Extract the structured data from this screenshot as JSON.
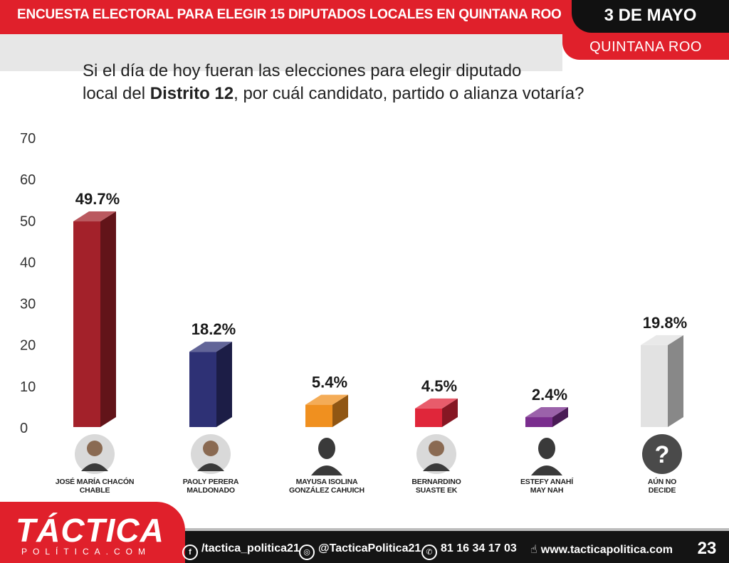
{
  "header": {
    "title": "ENCUESTA ELECTORAL PARA ELEGIR 15 DIPUTADOS LOCALES EN QUINTANA ROO",
    "date": "3 DE MAYO",
    "state": "QUINTANA ROO"
  },
  "question": {
    "line1": "Si el día de hoy fueran las elecciones para elegir diputado",
    "line2_pre": "local del ",
    "line2_bold": "Distrito 12",
    "line2_post": ", por cuál candidato, partido o alianza votaría?"
  },
  "chart_data": {
    "type": "bar",
    "title": "",
    "ylim": [
      0,
      70
    ],
    "yticks": [
      "70",
      "60",
      "50",
      "40",
      "30",
      "20",
      "10",
      "0"
    ],
    "categories": [
      "JOSÉ MARÍA CHACÓN CHABLE",
      "PAOLY PERERA MALDONADO",
      "MAYUSA ISOLINA GONZÁLEZ CAHUICH",
      "BERNARDINO SUASTE EK",
      "ESTEFY ANAHÍ MAY NAH",
      "AÚN NO DECIDE"
    ],
    "values": [
      49.7,
      18.2,
      5.4,
      4.5,
      2.4,
      19.8
    ],
    "labels": [
      "49.7%",
      "18.2%",
      "5.4%",
      "4.5%",
      "2.4%",
      "19.8%"
    ],
    "colors": [
      "#a3212a",
      "#2e3175",
      "#f0901f",
      "#e0263a",
      "#7a2d8e",
      "#e2e2e2"
    ]
  },
  "candidates": [
    {
      "line1": "JOSÉ MARÍA CHACÓN CHABLE",
      "line2": ""
    },
    {
      "line1": "PAOLY PERERA",
      "line2": "MALDONADO"
    },
    {
      "line1": "MAYUSA ISOLINA",
      "line2": "GONZÁLEZ CAHUICH"
    },
    {
      "line1": "BERNARDINO",
      "line2": "SUASTE EK"
    },
    {
      "line1": "ESTEFY ANAHÍ",
      "line2": "MAY NAH"
    },
    {
      "line1": "AÚN NO",
      "line2": "DECIDE"
    }
  ],
  "footer": {
    "brand": "TÁCTICA",
    "brand_sub": "POLÍTICA.COM",
    "facebook": "/tactica_politica21",
    "instagram": "@TacticaPolitica21",
    "phone": "81 16 34 17 03",
    "web": "www.tacticapolitica.com",
    "page": "23"
  }
}
